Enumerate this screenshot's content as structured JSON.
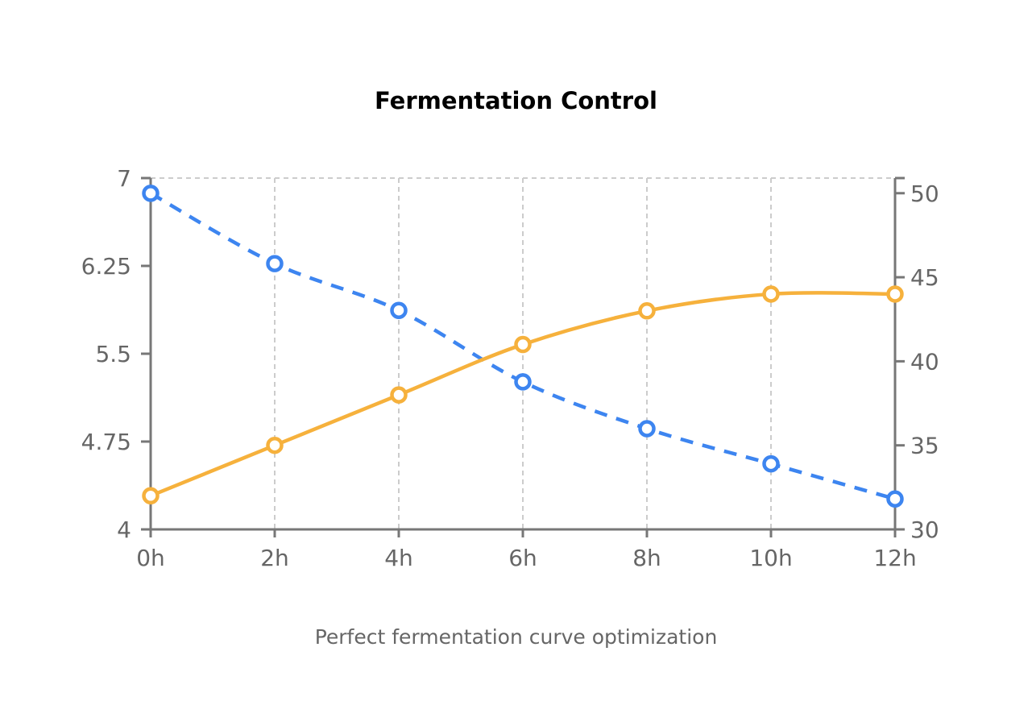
{
  "chart_data": {
    "type": "line",
    "title": "Fermentation Control",
    "subtitle": "Perfect fermentation curve optimization",
    "x": [
      "0h",
      "2h",
      "4h",
      "6h",
      "8h",
      "10h",
      "12h"
    ],
    "y_left": {
      "ticks": [
        "4",
        "4.75",
        "5.5",
        "6.25",
        "7"
      ],
      "range": [
        4,
        7
      ]
    },
    "y_right": {
      "ticks": [
        "30",
        "35",
        "40",
        "45",
        "50"
      ],
      "range": [
        30,
        50.9
      ]
    },
    "series": [
      {
        "axis": "left",
        "style": "dashed",
        "color": "#3d85f0",
        "values": [
          6.87,
          6.27,
          5.87,
          5.26,
          4.86,
          4.56,
          4.26
        ]
      },
      {
        "axis": "right",
        "style": "solid",
        "color": "#f6b13c",
        "values": [
          32,
          35,
          38,
          41,
          43,
          44,
          44
        ]
      }
    ],
    "grid": true,
    "colors": {
      "axis": "#777777",
      "grid": "#cccccc",
      "text": "#666666"
    }
  }
}
